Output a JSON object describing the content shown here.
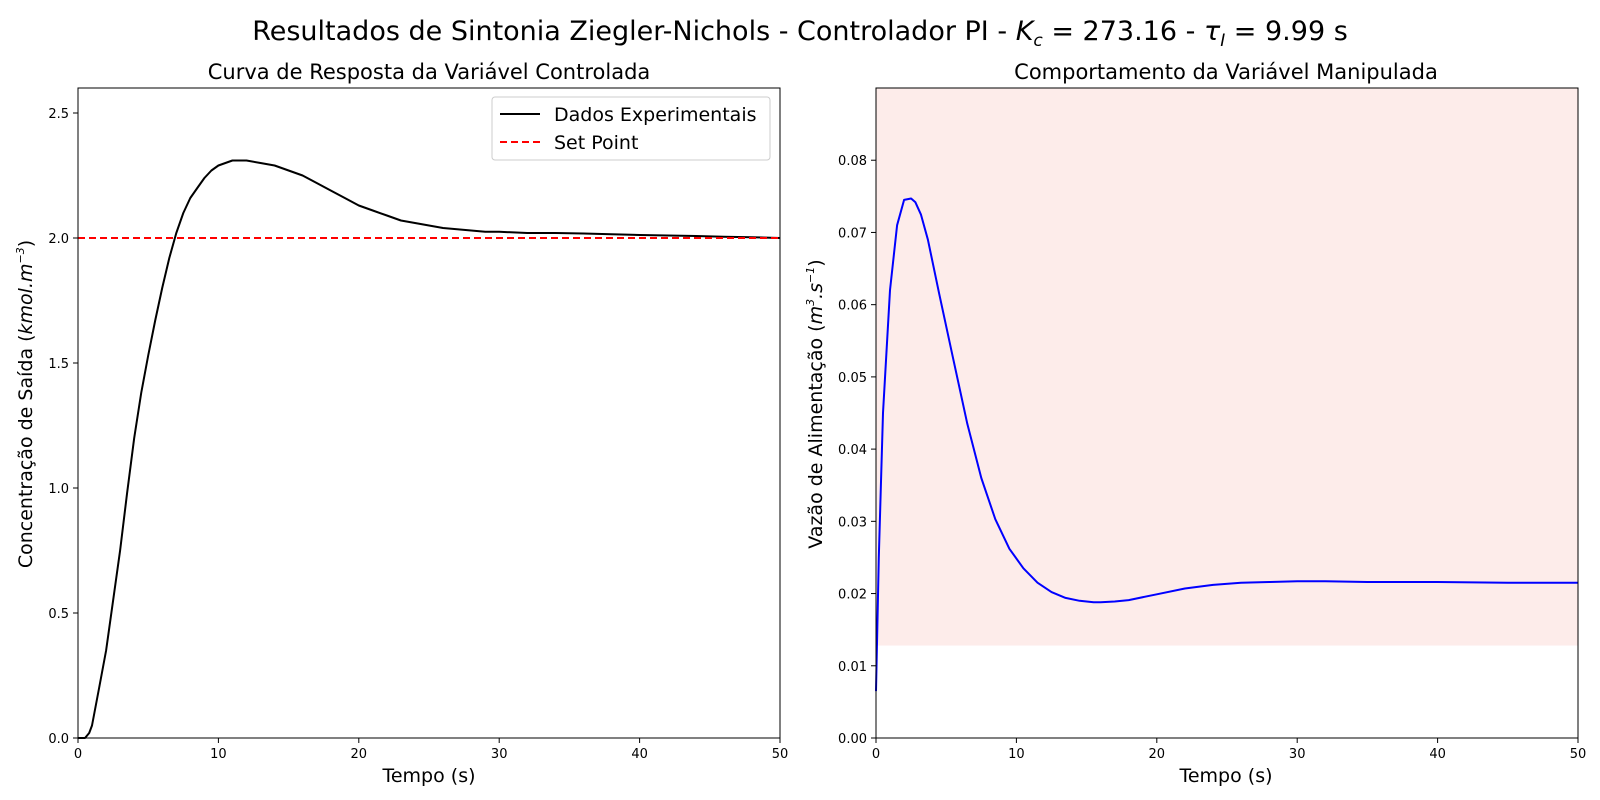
{
  "figure": {
    "title_prefix": "Resultados de Sintonia Ziegler-Nichols - Controlador PI - ",
    "kc_symbol": "K",
    "kc_subscript": "c",
    "kc_value": " = 273.16 - ",
    "tau_symbol": "τ",
    "tau_subscript": "I",
    "tau_value": " = 9.99 s"
  },
  "chart_data": [
    {
      "type": "line",
      "title": "Curva de Resposta da Variável Controlada",
      "xlabel": "Tempo (s)",
      "ylabel": "Concentração de Saída (",
      "ylabel_unit": "kmol.m",
      "ylabel_exp": "−3",
      "ylabel_end": ")",
      "xlim": [
        0,
        50
      ],
      "ylim": [
        0,
        2.6
      ],
      "xticks": [
        0,
        10,
        20,
        30,
        40,
        50
      ],
      "yticks": [
        0.0,
        0.5,
        1.0,
        1.5,
        2.0,
        2.5
      ],
      "ytick_labels": [
        "0.0",
        "0.5",
        "1.0",
        "1.5",
        "2.0",
        "2.5"
      ],
      "grid": false,
      "legend_position": "top-right",
      "series": [
        {
          "name": "Dados Experimentais",
          "color": "#000000",
          "style": "solid",
          "x": [
            0,
            0.5,
            0.8,
            1,
            1.5,
            2,
            2.5,
            3,
            3.5,
            4,
            4.5,
            5,
            5.5,
            6,
            6.5,
            7,
            7.5,
            8,
            8.5,
            9,
            9.5,
            10,
            10.5,
            11,
            11.5,
            12,
            13,
            14,
            15,
            16,
            17,
            18,
            19,
            20,
            21,
            22,
            23,
            24,
            25,
            26,
            27,
            28,
            29,
            30,
            32,
            34,
            36,
            38,
            40,
            42,
            44,
            46,
            48,
            50
          ],
          "y": [
            0,
            0,
            0.02,
            0.05,
            0.2,
            0.35,
            0.55,
            0.75,
            0.98,
            1.2,
            1.38,
            1.53,
            1.67,
            1.8,
            1.92,
            2.02,
            2.1,
            2.16,
            2.2,
            2.24,
            2.27,
            2.29,
            2.3,
            2.31,
            2.31,
            2.31,
            2.3,
            2.29,
            2.27,
            2.25,
            2.22,
            2.19,
            2.16,
            2.13,
            2.11,
            2.09,
            2.07,
            2.06,
            2.05,
            2.04,
            2.035,
            2.03,
            2.025,
            2.025,
            2.02,
            2.02,
            2.018,
            2.015,
            2.012,
            2.01,
            2.008,
            2.005,
            2.003,
            2.0
          ]
        },
        {
          "name": "Set Point",
          "color": "#ff0000",
          "style": "dashed",
          "x": [
            0,
            50
          ],
          "y": [
            2.0,
            2.0
          ]
        }
      ]
    },
    {
      "type": "line",
      "title": "Comportamento da Variável Manipulada",
      "xlabel": "Tempo (s)",
      "ylabel": "Vazão de Alimentação (",
      "ylabel_unit1": "m",
      "ylabel_exp1": "3",
      "ylabel_mid": ".s",
      "ylabel_exp2": "−1",
      "ylabel_end": ")",
      "xlim": [
        0,
        50
      ],
      "ylim": [
        0,
        0.09
      ],
      "xticks": [
        0,
        10,
        20,
        30,
        40,
        50
      ],
      "yticks": [
        0.0,
        0.01,
        0.02,
        0.03,
        0.04,
        0.05,
        0.06,
        0.07,
        0.08
      ],
      "ytick_labels": [
        "0.00",
        "0.01",
        "0.02",
        "0.03",
        "0.04",
        "0.05",
        "0.06",
        "0.07",
        "0.08"
      ],
      "grid": false,
      "shaded_band": {
        "y_from": 0.0128,
        "y_to": 0.09,
        "color": "#fdecea"
      },
      "series": [
        {
          "color": "#0000ff",
          "style": "solid",
          "x": [
            0,
            0.2,
            0.5,
            1,
            1.5,
            2,
            2.5,
            2.8,
            3.2,
            3.7,
            4.5,
            5.5,
            6.5,
            7.5,
            8.5,
            9.5,
            10.5,
            11.5,
            12.5,
            13.5,
            14.5,
            15.5,
            16,
            17,
            18,
            20,
            22,
            24,
            26,
            28,
            30,
            32,
            35,
            40,
            45,
            50
          ],
          "y": [
            0.0065,
            0.025,
            0.045,
            0.062,
            0.071,
            0.0745,
            0.0747,
            0.0742,
            0.0725,
            0.069,
            0.0615,
            0.0525,
            0.0435,
            0.036,
            0.0303,
            0.0262,
            0.0235,
            0.0215,
            0.0202,
            0.0194,
            0.019,
            0.0188,
            0.0188,
            0.0189,
            0.0191,
            0.0199,
            0.0207,
            0.0212,
            0.0215,
            0.0216,
            0.0217,
            0.0217,
            0.0216,
            0.0216,
            0.0215,
            0.0215
          ]
        }
      ]
    }
  ]
}
